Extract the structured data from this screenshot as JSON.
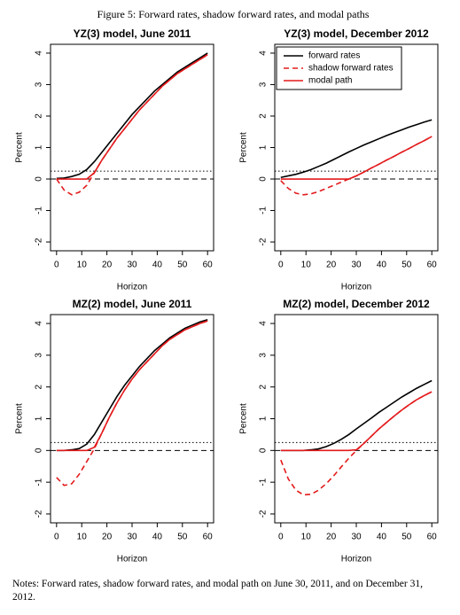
{
  "figure_title": "Figure 5: Forward rates, shadow forward rates, and modal paths",
  "notes": "Notes: Forward rates, shadow forward rates, and modal path on June 30, 2011, and on December 31, 2012.",
  "chart_data": [
    {
      "type": "line",
      "title": "YZ(3) model, June 2011",
      "xlabel": "Horizon",
      "ylabel": "Percent",
      "xlim": [
        -2.4,
        62.4
      ],
      "xticks": [
        0,
        10,
        20,
        30,
        40,
        50,
        60
      ],
      "ylim": [
        -2.28,
        4.28
      ],
      "yticks": [
        -2,
        -1,
        0,
        1,
        2,
        3,
        4
      ],
      "legend": false,
      "reference_lines": [
        {
          "value": 0,
          "style": "dashed"
        },
        {
          "value": 0.25,
          "style": "dotted"
        }
      ],
      "x": [
        0,
        3,
        6,
        9,
        12,
        15,
        18,
        21,
        24,
        27,
        30,
        33,
        36,
        39,
        42,
        45,
        48,
        51,
        54,
        57,
        60
      ],
      "series": [
        {
          "name": "forward rates",
          "color": "#000000",
          "style": "solid",
          "values": [
            0.02,
            0.03,
            0.08,
            0.15,
            0.3,
            0.55,
            0.85,
            1.15,
            1.45,
            1.75,
            2.05,
            2.3,
            2.55,
            2.8,
            3.0,
            3.2,
            3.4,
            3.55,
            3.7,
            3.85,
            4.0
          ]
        },
        {
          "name": "shadow forward rates",
          "color": "#e31a1c",
          "style": "dashed",
          "values": [
            0,
            -0.35,
            -0.5,
            -0.42,
            -0.2,
            0.2,
            0.6,
            0.95,
            1.3,
            1.6,
            1.9,
            2.2,
            2.45,
            2.7,
            2.95,
            3.15,
            3.35,
            3.5,
            3.65,
            3.8,
            3.95
          ]
        },
        {
          "name": "modal path",
          "color": "#e31a1c",
          "style": "solid",
          "values": [
            0,
            0,
            0,
            0,
            0,
            0.2,
            0.6,
            0.95,
            1.3,
            1.6,
            1.9,
            2.2,
            2.45,
            2.7,
            2.95,
            3.15,
            3.35,
            3.5,
            3.65,
            3.8,
            3.95
          ]
        }
      ]
    },
    {
      "type": "line",
      "title": "YZ(3) model, December 2012",
      "xlabel": "Horizon",
      "ylabel": "Percent",
      "xlim": [
        -2.4,
        62.4
      ],
      "xticks": [
        0,
        10,
        20,
        30,
        40,
        50,
        60
      ],
      "ylim": [
        -2.28,
        4.28
      ],
      "yticks": [
        -2,
        -1,
        0,
        1,
        2,
        3,
        4
      ],
      "legend": true,
      "legend_position": "top-left",
      "reference_lines": [
        {
          "value": 0,
          "style": "dashed"
        },
        {
          "value": 0.25,
          "style": "dotted"
        }
      ],
      "x": [
        0,
        3,
        6,
        9,
        12,
        15,
        18,
        21,
        24,
        27,
        30,
        33,
        36,
        39,
        42,
        45,
        48,
        51,
        54,
        57,
        60
      ],
      "series": [
        {
          "name": "forward rates",
          "color": "#000000",
          "style": "solid",
          "values": [
            0.05,
            0.1,
            0.15,
            0.22,
            0.3,
            0.4,
            0.5,
            0.62,
            0.74,
            0.86,
            0.97,
            1.08,
            1.18,
            1.28,
            1.38,
            1.47,
            1.56,
            1.65,
            1.73,
            1.81,
            1.88
          ]
        },
        {
          "name": "shadow forward rates",
          "color": "#e31a1c",
          "style": "dashed",
          "values": [
            -0.05,
            -0.3,
            -0.45,
            -0.5,
            -0.47,
            -0.4,
            -0.3,
            -0.2,
            -0.1,
            0,
            0.1,
            0.22,
            0.35,
            0.47,
            0.6,
            0.72,
            0.85,
            0.97,
            1.1,
            1.22,
            1.35
          ]
        },
        {
          "name": "modal path",
          "color": "#e31a1c",
          "style": "solid",
          "values": [
            0,
            0,
            0,
            0,
            0,
            0,
            0,
            0,
            0,
            0,
            0.1,
            0.22,
            0.35,
            0.47,
            0.6,
            0.72,
            0.85,
            0.97,
            1.1,
            1.22,
            1.35
          ]
        }
      ]
    },
    {
      "type": "line",
      "title": "MZ(2) model, June 2011",
      "xlabel": "Horizon",
      "ylabel": "Percent",
      "xlim": [
        -2.4,
        62.4
      ],
      "xticks": [
        0,
        10,
        20,
        30,
        40,
        50,
        60
      ],
      "ylim": [
        -2.28,
        4.28
      ],
      "yticks": [
        -2,
        -1,
        0,
        1,
        2,
        3,
        4
      ],
      "legend": false,
      "reference_lines": [
        {
          "value": 0,
          "style": "dashed"
        },
        {
          "value": 0.25,
          "style": "dotted"
        }
      ],
      "x": [
        0,
        3,
        6,
        9,
        12,
        15,
        18,
        21,
        24,
        27,
        30,
        33,
        36,
        39,
        42,
        45,
        48,
        51,
        54,
        57,
        60
      ],
      "series": [
        {
          "name": "forward rates",
          "color": "#000000",
          "style": "solid",
          "values": [
            0,
            0,
            0.02,
            0.06,
            0.2,
            0.5,
            0.9,
            1.3,
            1.7,
            2.05,
            2.35,
            2.65,
            2.9,
            3.15,
            3.35,
            3.55,
            3.7,
            3.85,
            3.95,
            4.05,
            4.12
          ]
        },
        {
          "name": "shadow forward rates",
          "color": "#e31a1c",
          "style": "dashed",
          "values": [
            -0.85,
            -1.1,
            -1.05,
            -0.75,
            -0.35,
            0.05,
            0.55,
            1.05,
            1.5,
            1.9,
            2.25,
            2.55,
            2.8,
            3.05,
            3.3,
            3.5,
            3.65,
            3.8,
            3.9,
            4.0,
            4.08
          ]
        },
        {
          "name": "modal path",
          "color": "#e31a1c",
          "style": "solid",
          "values": [
            0,
            0,
            0,
            0,
            0,
            0.1,
            0.55,
            1.05,
            1.5,
            1.9,
            2.25,
            2.55,
            2.8,
            3.05,
            3.3,
            3.5,
            3.65,
            3.8,
            3.9,
            4.0,
            4.08
          ]
        }
      ]
    },
    {
      "type": "line",
      "title": "MZ(2) model, December 2012",
      "xlabel": "Horizon",
      "ylabel": "Percent",
      "xlim": [
        -2.4,
        62.4
      ],
      "xticks": [
        0,
        10,
        20,
        30,
        40,
        50,
        60
      ],
      "ylim": [
        -2.28,
        4.28
      ],
      "yticks": [
        -2,
        -1,
        0,
        1,
        2,
        3,
        4
      ],
      "legend": false,
      "reference_lines": [
        {
          "value": 0,
          "style": "dashed"
        },
        {
          "value": 0.25,
          "style": "dotted"
        }
      ],
      "x": [
        0,
        3,
        6,
        9,
        12,
        15,
        18,
        21,
        24,
        27,
        30,
        33,
        36,
        39,
        42,
        45,
        48,
        51,
        54,
        57,
        60
      ],
      "series": [
        {
          "name": "forward rates",
          "color": "#000000",
          "style": "solid",
          "values": [
            0,
            0,
            0,
            0,
            0.02,
            0.05,
            0.12,
            0.22,
            0.35,
            0.5,
            0.68,
            0.85,
            1.02,
            1.2,
            1.36,
            1.52,
            1.68,
            1.82,
            1.96,
            2.08,
            2.2
          ]
        },
        {
          "name": "shadow forward rates",
          "color": "#e31a1c",
          "style": "dashed",
          "values": [
            -0.3,
            -0.9,
            -1.25,
            -1.4,
            -1.38,
            -1.25,
            -1.05,
            -0.8,
            -0.52,
            -0.25,
            0,
            0.22,
            0.45,
            0.68,
            0.88,
            1.08,
            1.27,
            1.44,
            1.6,
            1.73,
            1.85
          ]
        },
        {
          "name": "modal path",
          "color": "#e31a1c",
          "style": "solid",
          "values": [
            0,
            0,
            0,
            0,
            0,
            0,
            0,
            0,
            0,
            0,
            0.02,
            0.22,
            0.45,
            0.68,
            0.88,
            1.08,
            1.27,
            1.44,
            1.6,
            1.73,
            1.85
          ]
        }
      ]
    }
  ]
}
